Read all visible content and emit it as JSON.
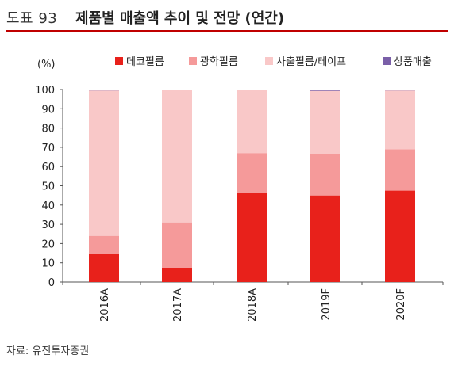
{
  "header": {
    "fig_label": "도표 93",
    "title": "제품별 매출액 추이 및 전망 (연간)"
  },
  "source": "자료: 유진투자증권",
  "colors": {
    "deco": "#e8211b",
    "optical": "#f59a9a",
    "photo": "#f9c8c8",
    "goods": "#7a5fa8",
    "accent": "#c00000"
  },
  "chart_data": {
    "type": "bar",
    "stacked": true,
    "unit_label": "(%)",
    "categories": [
      "2016A",
      "2017A",
      "2018A",
      "2019F",
      "2020F"
    ],
    "series": [
      {
        "name": "데코필름",
        "values": [
          14.5,
          7.5,
          46.5,
          45.0,
          47.5
        ]
      },
      {
        "name": "광학필름",
        "values": [
          9.5,
          23.5,
          20.5,
          21.5,
          21.5
        ]
      },
      {
        "name": "사출필름/테이프",
        "values": [
          75.5,
          69.0,
          32.8,
          32.8,
          30.5
        ]
      },
      {
        "name": "상품매출",
        "values": [
          0.5,
          0.0,
          0.2,
          0.7,
          0.5
        ]
      }
    ],
    "ylim": [
      0,
      100
    ],
    "yticks": [
      0,
      10,
      20,
      30,
      40,
      50,
      60,
      70,
      80,
      90,
      100
    ],
    "legend_position": "top",
    "grid": false
  }
}
